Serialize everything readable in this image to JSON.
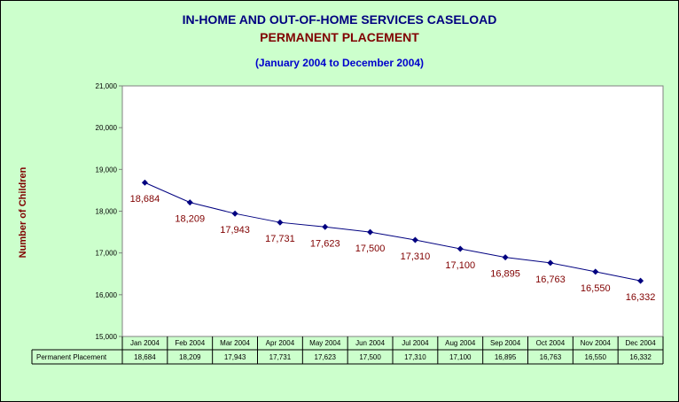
{
  "title": "IN-HOME AND OUT-OF-HOME SERVICES CASELOAD",
  "subtitle": "PERMANENT PLACEMENT",
  "period": "(January 2004 to December 2004)",
  "chart_data": {
    "type": "line",
    "title": "IN-HOME AND OUT-OF-HOME SERVICES CASELOAD",
    "subtitle": "PERMANENT PLACEMENT",
    "xlabel": "",
    "ylabel": "Number of Children",
    "categories": [
      "Jan 2004",
      "Feb 2004",
      "Mar 2004",
      "Apr 2004",
      "May 2004",
      "Jun 2004",
      "Jul 2004",
      "Aug 2004",
      "Sep 2004",
      "Oct 2004",
      "Nov 2004",
      "Dec 2004"
    ],
    "series": [
      {
        "name": "Permanent Placement",
        "values": [
          18684,
          18209,
          17943,
          17731,
          17623,
          17500,
          17310,
          17100,
          16895,
          16763,
          16550,
          16332
        ],
        "labels": [
          "18,684",
          "18,209",
          "17,943",
          "17,731",
          "17,623",
          "17,500",
          "17,310",
          "17,100",
          "16,895",
          "16,763",
          "16,550",
          "16,332"
        ]
      }
    ],
    "ylim": [
      15000,
      21000
    ],
    "yticks": [
      15000,
      16000,
      17000,
      18000,
      19000,
      20000,
      21000
    ],
    "ytick_labels": [
      "15,000",
      "16,000",
      "17,000",
      "18,000",
      "19,000",
      "20,000",
      "21,000"
    ],
    "grid": false,
    "data_table": true,
    "line_color": "#000080",
    "label_color": "#800000",
    "plot_background": "#ffffff",
    "chart_background": "#ccffcc"
  }
}
